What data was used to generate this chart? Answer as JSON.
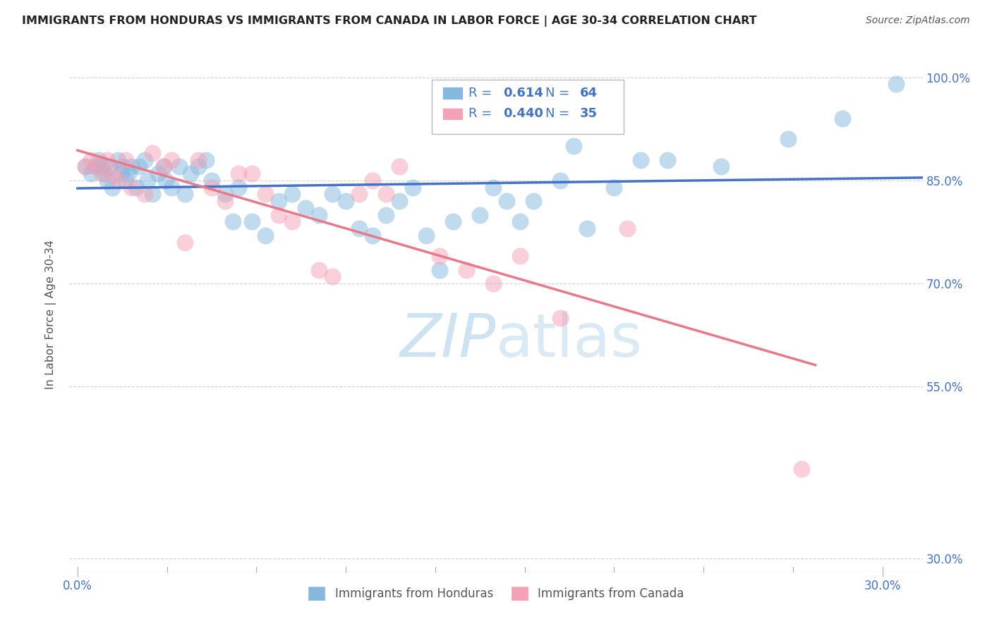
{
  "title": "IMMIGRANTS FROM HONDURAS VS IMMIGRANTS FROM CANADA IN LABOR FORCE | AGE 30-34 CORRELATION CHART",
  "source": "Source: ZipAtlas.com",
  "ylabel_text": "In Labor Force | Age 30-34",
  "xlim": [
    -0.003,
    0.315
  ],
  "ylim": [
    0.28,
    1.03
  ],
  "yticks": [
    0.3,
    0.55,
    0.7,
    0.85,
    1.0
  ],
  "ytick_labels": [
    "30.0%",
    "55.0%",
    "70.0%",
    "85.0%",
    "100.0%"
  ],
  "xticks": [
    0.0,
    0.3
  ],
  "xtick_labels": [
    "0.0%",
    "30.0%"
  ],
  "legend_r1": "0.614",
  "legend_n1": "64",
  "legend_r2": "0.440",
  "legend_n2": "35",
  "honduras_color": "#85b8de",
  "canada_color": "#f4a0b5",
  "honduras_line_color": "#4472c4",
  "canada_line_color": "#e8788a",
  "watermark_color": "#c5dff0",
  "background_color": "#ffffff",
  "grid_color": "#d0d0d0",
  "text_color": "#555555",
  "blue_text_color": "#4472c4",
  "title_color": "#222222",
  "honduras_scatter_x": [
    0.003,
    0.005,
    0.007,
    0.008,
    0.009,
    0.01,
    0.011,
    0.012,
    0.013,
    0.015,
    0.016,
    0.017,
    0.018,
    0.019,
    0.02,
    0.022,
    0.023,
    0.025,
    0.026,
    0.028,
    0.03,
    0.032,
    0.033,
    0.035,
    0.038,
    0.04,
    0.042,
    0.045,
    0.048,
    0.05,
    0.055,
    0.058,
    0.06,
    0.065,
    0.07,
    0.075,
    0.08,
    0.085,
    0.09,
    0.095,
    0.1,
    0.105,
    0.11,
    0.115,
    0.12,
    0.125,
    0.13,
    0.135,
    0.14,
    0.15,
    0.155,
    0.16,
    0.165,
    0.17,
    0.18,
    0.185,
    0.19,
    0.2,
    0.21,
    0.22,
    0.24,
    0.265,
    0.285,
    0.305
  ],
  "honduras_scatter_y": [
    0.87,
    0.86,
    0.87,
    0.88,
    0.87,
    0.86,
    0.85,
    0.87,
    0.84,
    0.88,
    0.86,
    0.87,
    0.85,
    0.86,
    0.87,
    0.84,
    0.87,
    0.88,
    0.85,
    0.83,
    0.86,
    0.87,
    0.85,
    0.84,
    0.87,
    0.83,
    0.86,
    0.87,
    0.88,
    0.85,
    0.83,
    0.79,
    0.84,
    0.79,
    0.77,
    0.82,
    0.83,
    0.81,
    0.8,
    0.83,
    0.82,
    0.78,
    0.77,
    0.8,
    0.82,
    0.84,
    0.77,
    0.72,
    0.79,
    0.8,
    0.84,
    0.82,
    0.79,
    0.82,
    0.85,
    0.9,
    0.78,
    0.84,
    0.88,
    0.88,
    0.87,
    0.91,
    0.94,
    0.99
  ],
  "canada_scatter_x": [
    0.003,
    0.005,
    0.007,
    0.009,
    0.011,
    0.013,
    0.015,
    0.018,
    0.02,
    0.025,
    0.028,
    0.032,
    0.035,
    0.04,
    0.045,
    0.05,
    0.055,
    0.06,
    0.065,
    0.07,
    0.075,
    0.08,
    0.09,
    0.095,
    0.105,
    0.11,
    0.115,
    0.12,
    0.135,
    0.145,
    0.155,
    0.165,
    0.18,
    0.205,
    0.27
  ],
  "canada_scatter_y": [
    0.87,
    0.88,
    0.87,
    0.86,
    0.88,
    0.86,
    0.85,
    0.88,
    0.84,
    0.83,
    0.89,
    0.87,
    0.88,
    0.76,
    0.88,
    0.84,
    0.82,
    0.86,
    0.86,
    0.83,
    0.8,
    0.79,
    0.72,
    0.71,
    0.83,
    0.85,
    0.83,
    0.87,
    0.74,
    0.72,
    0.7,
    0.74,
    0.65,
    0.78,
    0.43
  ]
}
